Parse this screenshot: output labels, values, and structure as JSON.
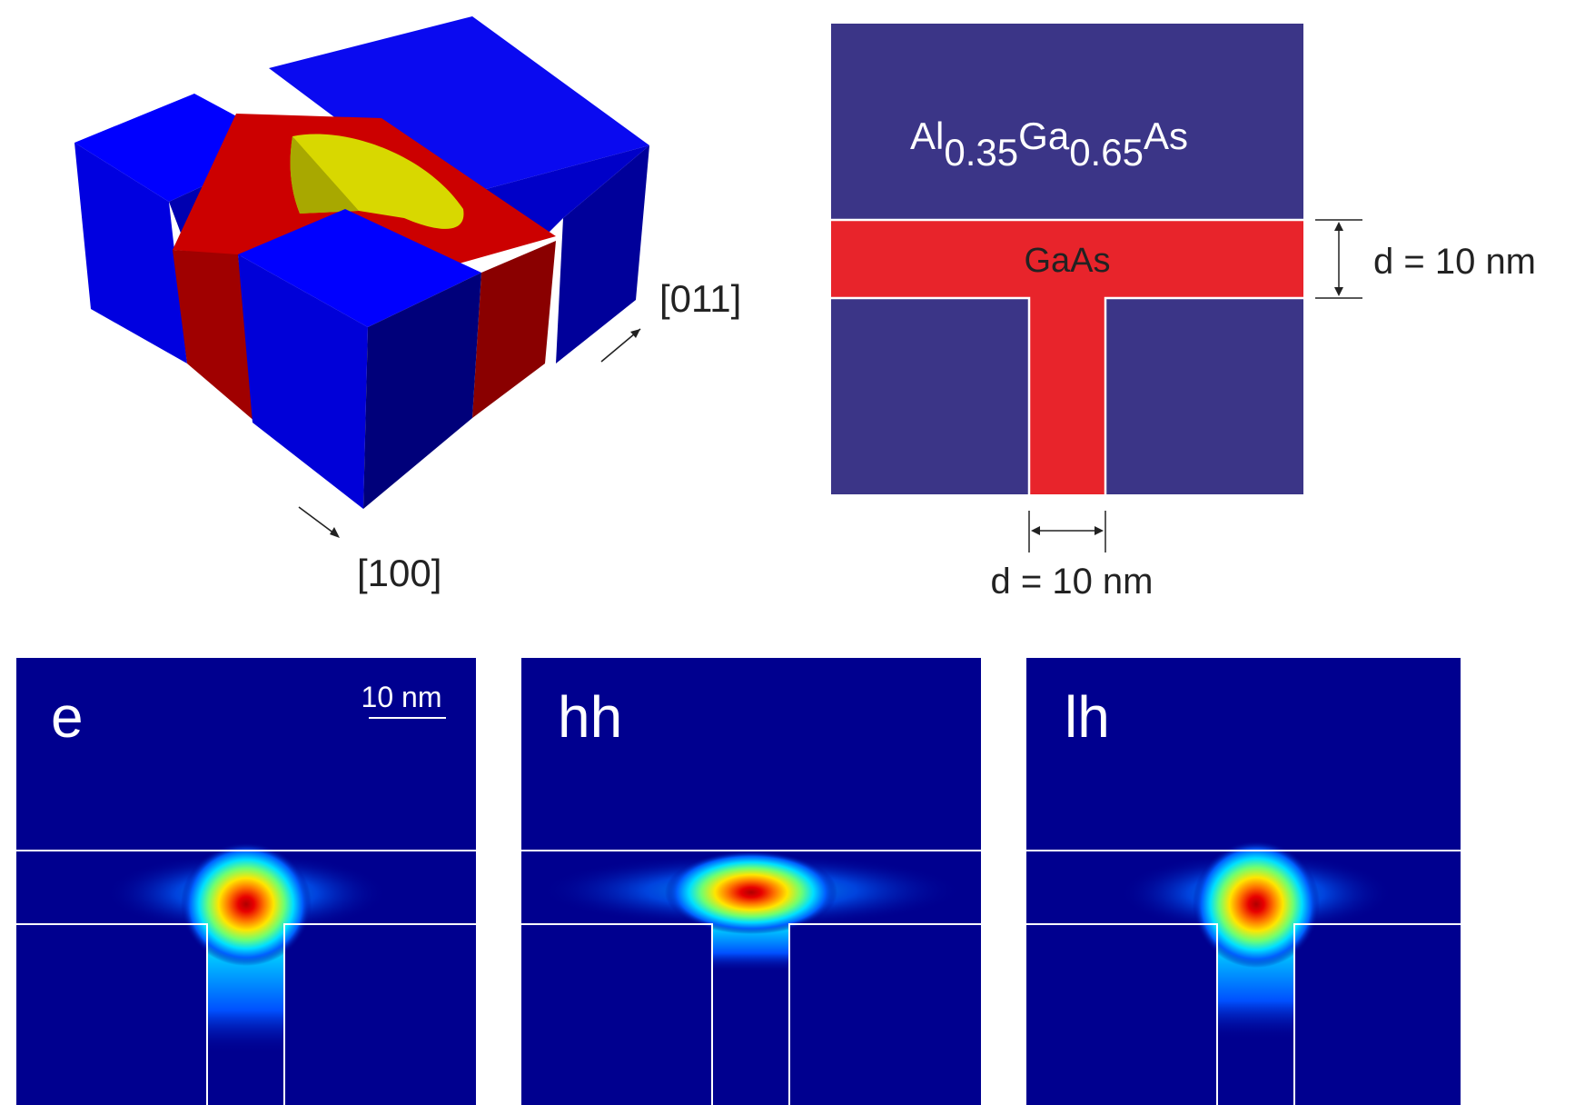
{
  "iso_view": {
    "axis_011": "[011]",
    "axis_100": "[100]"
  },
  "cross_section": {
    "barrier_el1": "Al",
    "barrier_sub1": "0.35",
    "barrier_el2": "Ga",
    "barrier_sub2": "0.65",
    "barrier_el3": "As",
    "well_label": "GaAs",
    "thickness_label": "d = 10 nm",
    "stem_width_label": "d = 10 nm"
  },
  "wavefunction_panels": [
    {
      "label": "e"
    },
    {
      "label": "hh"
    },
    {
      "label": "lh"
    }
  ],
  "scale_bar_label": "10 nm",
  "colors": {
    "barrier_cross_section": "#3b3587",
    "well": "#e8242b",
    "panel_background": "#00008f",
    "iso_blue": "#0000ff",
    "iso_red": "#cc0000",
    "iso_yellow": "#d8d800"
  }
}
